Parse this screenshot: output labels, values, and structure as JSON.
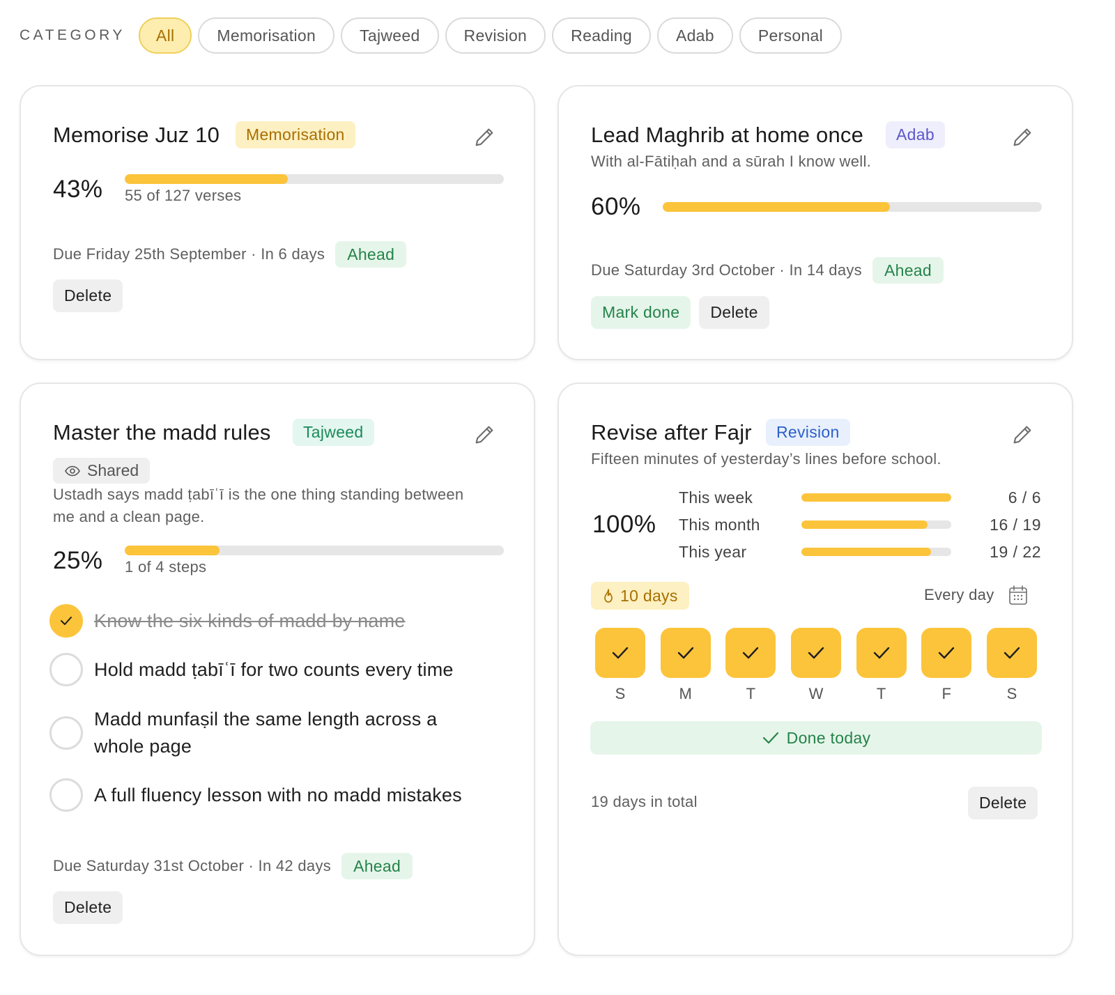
{
  "filters": {
    "label": "CATEGORY",
    "chips": [
      {
        "label": "All",
        "active": true
      },
      {
        "label": "Memorisation",
        "active": false
      },
      {
        "label": "Tajweed",
        "active": false
      },
      {
        "label": "Revision",
        "active": false
      },
      {
        "label": "Reading",
        "active": false
      },
      {
        "label": "Adab",
        "active": false
      },
      {
        "label": "Personal",
        "active": false
      }
    ]
  },
  "cards": {
    "juz": {
      "title": "Memorise Juz 10",
      "tag": "Memorisation",
      "percent": "43%",
      "progress": 0.43,
      "count": "55 of 127 verses",
      "due": "Due Friday 25th September · In 6 days",
      "status": "Ahead",
      "delete": "Delete"
    },
    "maghrib": {
      "title": "Lead Maghrib at home once",
      "tag": "Adab",
      "subtitle": "With al-Fātiḥah and a sūrah I know well.",
      "percent": "60%",
      "progress": 0.6,
      "due": "Due Saturday 3rd October · In 14 days",
      "status": "Ahead",
      "mark_done": "Mark done",
      "delete": "Delete"
    },
    "madd": {
      "title": "Master the madd rules",
      "tag": "Tajweed",
      "shared": "Shared",
      "note": "Ustadh says madd ṭabīʿī is the one thing standing between me and a clean page.",
      "percent": "25%",
      "progress": 0.25,
      "count": "1 of 4 steps",
      "steps": [
        {
          "label": "Know the six kinds of madd by name",
          "done": true
        },
        {
          "label": "Hold madd ṭabīʿī for two counts every time",
          "done": false
        },
        {
          "label": "Madd munfaṣil the same length across a whole page",
          "done": false
        },
        {
          "label": "A full fluency lesson with no madd mistakes",
          "done": false
        }
      ],
      "due": "Due Saturday 31st October · In 42 days",
      "status": "Ahead",
      "delete": "Delete"
    },
    "fajr": {
      "title": "Revise after Fajr",
      "tag": "Revision",
      "subtitle": "Fifteen minutes of yesterday’s lines before school.",
      "percent": "100%",
      "periods": [
        {
          "label": "This week",
          "value": "6 / 6",
          "progress": 1.0
        },
        {
          "label": "This month",
          "value": "16 / 19",
          "progress": 0.842
        },
        {
          "label": "This year",
          "value": "19 / 22",
          "progress": 0.864
        }
      ],
      "streak": "10 days",
      "frequency": "Every day",
      "days": [
        "S",
        "M",
        "T",
        "W",
        "T",
        "F",
        "S"
      ],
      "done_today": "Done today",
      "total": "19 days in total",
      "delete": "Delete"
    }
  },
  "colors": {
    "accent": "#fcc43b",
    "success": "#24834a",
    "track": "#e6e6e6"
  },
  "icons": {
    "edit": "pencil-icon",
    "shared": "eye-icon",
    "streak": "flame-icon",
    "calendar": "calendar-icon",
    "check": "check-icon"
  }
}
